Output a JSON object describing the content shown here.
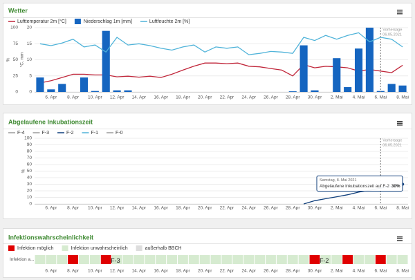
{
  "chart_data": [
    {
      "type": "combo",
      "title": "Wetter",
      "y_label": "%",
      "y2_label": "°C, mm",
      "categories": [
        null,
        "6. Apr",
        null,
        "8. Apr",
        null,
        "10. Apr",
        null,
        "12. Apr",
        null,
        "14. Apr",
        null,
        "16. Apr",
        null,
        "18. Apr",
        null,
        "20. Apr",
        null,
        "22. Apr",
        null,
        "24. Apr",
        null,
        "26. Apr",
        null,
        "28. Apr",
        null,
        "30. Apr",
        null,
        "2. Mai",
        null,
        "4. Mai",
        null,
        "6. Mai",
        null,
        "8. Mai"
      ],
      "series": [
        {
          "name": "Lufttemperatur 2m [°C]",
          "type": "line",
          "color": "#c0263a",
          "axis": "y2",
          "values": [
            2.8,
            3.5,
            4.5,
            5.5,
            5.5,
            5.3,
            5.3,
            4.7,
            4.9,
            4.6,
            4.9,
            4.5,
            5.5,
            6.8,
            8.0,
            9.0,
            9.0,
            8.8,
            9.0,
            8.0,
            7.8,
            7.3,
            6.8,
            5.0,
            8.5,
            7.5,
            8.0,
            7.8,
            7.5,
            6.5,
            7.0,
            6.5,
            6.0,
            8.3
          ]
        },
        {
          "name": "Niederschlag 1m [mm]",
          "type": "bar",
          "color": "#1565c0",
          "axis": "y2",
          "values": [
            4.5,
            0.8,
            2.5,
            0,
            4.5,
            0.3,
            19,
            0.5,
            0.5,
            0,
            0,
            0,
            0,
            0,
            0,
            0,
            0,
            0,
            0,
            0,
            0,
            0,
            0,
            0.2,
            14.5,
            0.5,
            0,
            10.5,
            1.5,
            13.5,
            20,
            0.3,
            2.5,
            2
          ]
        },
        {
          "name": "Luftfeuchte 2m [%]",
          "type": "line",
          "color": "#4fb3d9",
          "values": [
            75,
            72,
            76,
            82,
            70,
            73,
            62,
            85,
            73,
            75,
            72,
            68,
            65,
            70,
            73,
            62,
            70,
            68,
            70,
            58,
            60,
            63,
            62,
            60,
            85,
            80,
            88,
            82,
            88,
            92,
            78,
            85,
            82,
            70
          ]
        }
      ],
      "ylim": [
        0,
        100
      ],
      "yticks": [
        0,
        25,
        50,
        75,
        100
      ],
      "y2lim": [
        0,
        20
      ],
      "y2ticks": [
        0,
        5,
        10,
        15,
        20
      ],
      "grid": true,
      "forecast": {
        "label": "Vorhersage",
        "date": "06.05.2021",
        "at": "6. Mai"
      }
    },
    {
      "type": "line",
      "title": "Abgelaufene Inkubationszeit",
      "y_label": "%",
      "categories": [
        null,
        "6. Apr",
        null,
        "8. Apr",
        null,
        "10. Apr",
        null,
        "12. Apr",
        null,
        "14. Apr",
        null,
        "16. Apr",
        null,
        "18. Apr",
        null,
        "20. Apr",
        null,
        "22. Apr",
        null,
        "24. Apr",
        null,
        "26. Apr",
        null,
        "28. Apr",
        null,
        "30. Apr",
        null,
        "2. Mai",
        null,
        "4. Mai",
        null,
        "6. Mai",
        null,
        "8. Mai"
      ],
      "series": [
        {
          "name": "F-4",
          "color": "#9a9a9a",
          "values": [
            null,
            null,
            null,
            null,
            null,
            null,
            null,
            null,
            null,
            null,
            null,
            null,
            null,
            null,
            null,
            null,
            null,
            null,
            null,
            null,
            null,
            null,
            null,
            null,
            null,
            null,
            null,
            null,
            null,
            null,
            null,
            null,
            null,
            null
          ]
        },
        {
          "name": "F-3",
          "color": "#9a9a9a",
          "values": [
            null,
            null,
            null,
            null,
            null,
            null,
            null,
            null,
            null,
            null,
            null,
            null,
            null,
            null,
            null,
            null,
            null,
            null,
            null,
            null,
            null,
            null,
            null,
            null,
            null,
            null,
            null,
            null,
            null,
            null,
            null,
            null,
            null,
            null
          ]
        },
        {
          "name": "F-2",
          "color": "#0d3d7a",
          "values": [
            null,
            null,
            null,
            null,
            null,
            null,
            null,
            null,
            null,
            null,
            null,
            null,
            null,
            null,
            null,
            null,
            null,
            null,
            null,
            null,
            null,
            null,
            null,
            null,
            0,
            5,
            8,
            11,
            14,
            18,
            21,
            24,
            27,
            30
          ],
          "value_labels": [
            null,
            null,
            null,
            null,
            null,
            null,
            null,
            null,
            null,
            null,
            null,
            null,
            null,
            null,
            null,
            null,
            null,
            null,
            null,
            null,
            null,
            null,
            null,
            null,
            null,
            null,
            null,
            null,
            null,
            null,
            null,
            null,
            null,
            "30%"
          ]
        },
        {
          "name": "F-1",
          "color": "#4fb3d9",
          "values": [
            null,
            null,
            null,
            null,
            null,
            null,
            null,
            null,
            null,
            null,
            null,
            null,
            null,
            null,
            null,
            null,
            null,
            null,
            null,
            null,
            null,
            null,
            null,
            null,
            null,
            null,
            null,
            null,
            null,
            null,
            null,
            null,
            null,
            null
          ]
        },
        {
          "name": "F-0",
          "color": "#9a9a9a",
          "values": [
            null,
            null,
            null,
            null,
            null,
            null,
            null,
            null,
            null,
            null,
            null,
            null,
            null,
            null,
            null,
            null,
            null,
            null,
            null,
            null,
            null,
            null,
            null,
            null,
            null,
            null,
            null,
            null,
            null,
            null,
            null,
            null,
            null,
            null
          ]
        }
      ],
      "ylim": [
        0,
        100
      ],
      "yticks": [
        0,
        10,
        20,
        30,
        40,
        50,
        60,
        70,
        80,
        90,
        100
      ],
      "grid": true,
      "forecast": {
        "label": "Vorhersage",
        "date": "06.05.2021",
        "at": "6. Mai"
      },
      "tooltip": {
        "title": "Samstag, 8. Mai 2021",
        "text": "Abgelaufene Inkubationszeit auf F-2"
      }
    },
    {
      "type": "heatmap",
      "title": "Infektionswahrscheinlichkeit",
      "categories": [
        null,
        "6. Apr",
        null,
        "8. Apr",
        null,
        "10. Apr",
        null,
        "12. Apr",
        null,
        "14. Apr",
        null,
        "16. Apr",
        null,
        "18. Apr",
        null,
        "20. Apr",
        null,
        "22. Apr",
        null,
        "24. Apr",
        null,
        "26. Apr",
        null,
        "28. Apr",
        null,
        "30. Apr",
        null,
        "2. Mai",
        null,
        "4. Mai",
        null,
        "6. Mai",
        null,
        "8. Mai"
      ],
      "legend": [
        {
          "name": "Infektion möglich",
          "color": "#e00000"
        },
        {
          "name": "Infektion unwahrscheinlich",
          "color": "#d6ebd0"
        },
        {
          "name": "außerhalb BBCH",
          "color": "#dddddd"
        }
      ],
      "rows": [
        {
          "label": "Infektion a...",
          "values": [
            "Infektion unwahrscheinlich",
            "Infektion unwahrscheinlich",
            "Infektion unwahrscheinlich",
            "Infektion möglich",
            "Infektion unwahrscheinlich",
            "Infektion unwahrscheinlich",
            "Infektion möglich",
            "Infektion unwahrscheinlich",
            "Infektion unwahrscheinlich",
            "Infektion unwahrscheinlich",
            "Infektion unwahrscheinlich",
            "Infektion unwahrscheinlich",
            "Infektion unwahrscheinlich",
            "Infektion unwahrscheinlich",
            "Infektion unwahrscheinlich",
            "Infektion unwahrscheinlich",
            "Infektion unwahrscheinlich",
            "Infektion unwahrscheinlich",
            "Infektion unwahrscheinlich",
            "Infektion unwahrscheinlich",
            "Infektion unwahrscheinlich",
            "Infektion unwahrscheinlich",
            "Infektion unwahrscheinlich",
            "Infektion unwahrscheinlich",
            "Infektion unwahrscheinlich",
            "Infektion möglich",
            "Infektion unwahrscheinlich",
            "Infektion unwahrscheinlich",
            "Infektion möglich",
            "Infektion unwahrscheinlich",
            "Infektion unwahrscheinlich",
            "Infektion möglich",
            "Infektion unwahrscheinlich",
            "Infektion unwahrscheinlich"
          ],
          "cell_labels": [
            null,
            null,
            null,
            null,
            null,
            null,
            "F-3",
            null,
            null,
            null,
            null,
            null,
            null,
            null,
            null,
            null,
            null,
            null,
            null,
            null,
            null,
            null,
            null,
            null,
            null,
            "F-2",
            null,
            null,
            null,
            null,
            null,
            null,
            null,
            null
          ]
        }
      ]
    }
  ]
}
